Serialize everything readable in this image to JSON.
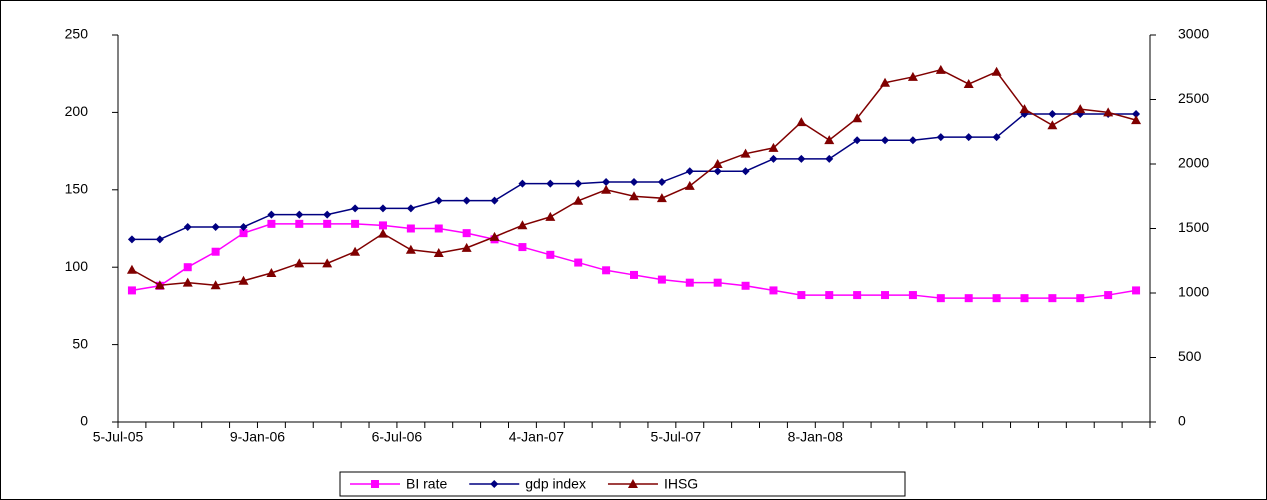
{
  "chart_data": {
    "type": "line",
    "categories": [
      "5-Jul-05",
      null,
      null,
      null,
      null,
      "9-Jan-06",
      null,
      null,
      null,
      null,
      "6-Jul-06",
      null,
      null,
      null,
      null,
      "4-Jan-07",
      null,
      null,
      null,
      null,
      "5-Jul-07",
      null,
      null,
      null,
      null,
      "8-Jan-08",
      null,
      null,
      null,
      null,
      null,
      null,
      null,
      null,
      null,
      null,
      null
    ],
    "series": [
      {
        "name": "BI rate",
        "color": "#ff00ff",
        "marker": "square",
        "values": [
          85,
          88,
          100,
          110,
          122,
          128,
          128,
          128,
          128,
          127,
          125,
          125,
          122,
          118,
          113,
          108,
          103,
          98,
          95,
          92,
          90,
          90,
          88,
          85,
          82,
          82,
          82,
          82,
          82,
          80,
          80,
          80,
          80,
          80,
          80,
          82,
          85
        ]
      },
      {
        "name": "gdp index",
        "color": "#000080",
        "marker": "diamond",
        "values": [
          118,
          118,
          126,
          126,
          126,
          134,
          134,
          134,
          138,
          138,
          138,
          143,
          143,
          143,
          154,
          154,
          154,
          155,
          155,
          155,
          162,
          162,
          162,
          170,
          170,
          170,
          182,
          182,
          182,
          184,
          184,
          184,
          199,
          199,
          199,
          199,
          199
        ]
      },
      {
        "name": "IHSG",
        "color": "#800000",
        "marker": "triangle",
        "axis": "y2",
        "values": [
          1180,
          1060,
          1080,
          1060,
          1095,
          1155,
          1230,
          1230,
          1320,
          1460,
          1335,
          1310,
          1350,
          1435,
          1525,
          1590,
          1715,
          1800,
          1750,
          1735,
          1830,
          2000,
          2080,
          2125,
          2325,
          2185,
          2355,
          2630,
          2675,
          2730,
          2620,
          2715,
          2425,
          2300,
          2425,
          2400,
          2340
        ]
      }
    ],
    "ylim": [
      0,
      250
    ],
    "yticks": [
      0,
      50,
      100,
      150,
      200,
      250
    ],
    "y2lim": [
      0,
      3000
    ],
    "y2ticks": [
      0,
      500,
      1000,
      1500,
      2000,
      2500,
      3000
    ],
    "legend": "bottom"
  }
}
